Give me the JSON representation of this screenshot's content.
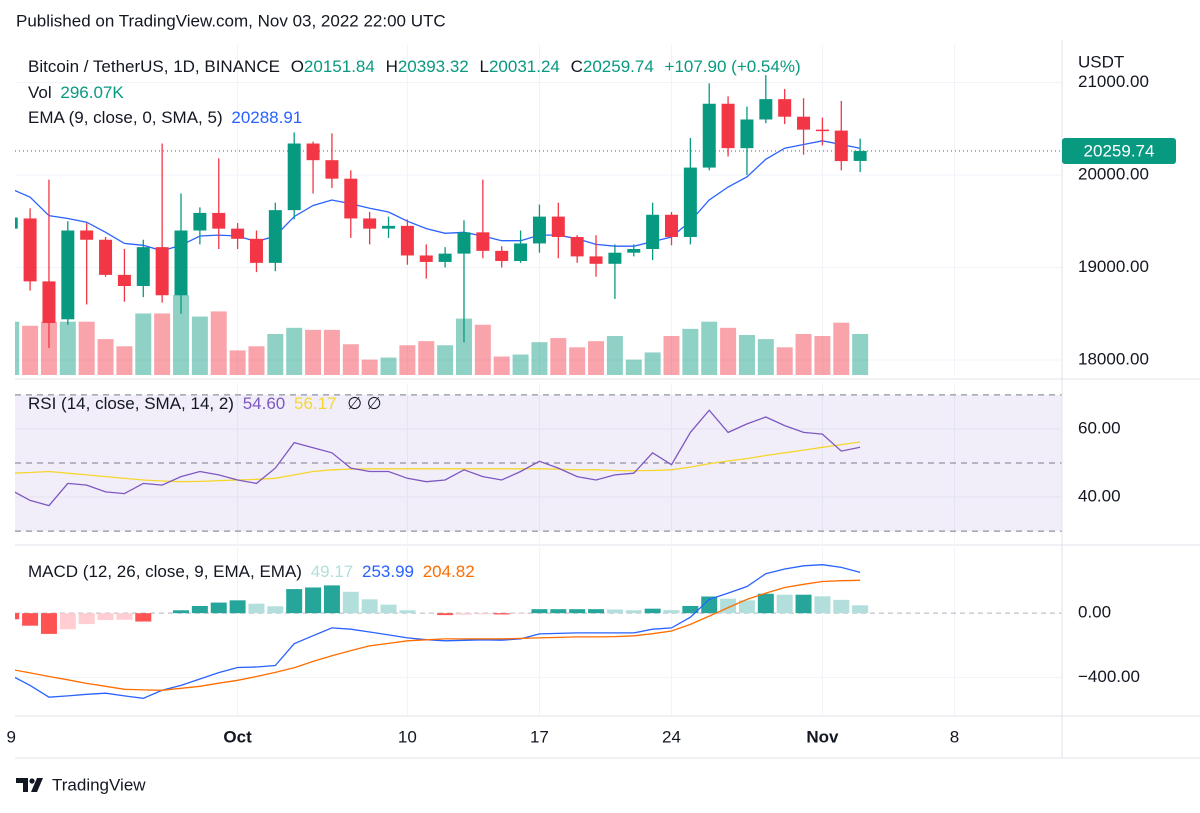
{
  "header": "Published on TradingView.com, Nov 03, 2022 22:00 UTC",
  "footer": "TradingView",
  "chart_data": [
    {
      "type": "candlestick",
      "title": "Bitcoin / TetherUS, 1D, BINANCE",
      "ohlc_labels": [
        "O",
        "H",
        "L",
        "C"
      ],
      "change": "+107.90 (+0.54%)",
      "axis_label": "USDT",
      "up_color": "#089981",
      "down_color": "#f23645",
      "open": [
        19420,
        19530,
        18850,
        18440,
        19400,
        19300,
        18920,
        18800,
        19220,
        18700,
        19400,
        19590,
        19420,
        19310,
        19050,
        19620,
        20340,
        20160,
        19960,
        19530,
        19420,
        19450,
        19130,
        19060,
        19150,
        19380,
        19180,
        19070,
        19260,
        19550,
        19330,
        19120,
        19040,
        19160,
        19200,
        19570,
        19330,
        20080,
        20770,
        20290,
        20600,
        20820,
        20630,
        20490,
        20480,
        20151.84
      ],
      "high": [
        19700,
        19640,
        19950,
        19500,
        19480,
        19330,
        19200,
        19300,
        20340,
        19800,
        19650,
        20180,
        19480,
        19400,
        19700,
        20460,
        20360,
        20450,
        20050,
        19600,
        19550,
        19520,
        19250,
        19220,
        19510,
        19950,
        19230,
        19400,
        19680,
        19700,
        19350,
        19350,
        19250,
        19250,
        19700,
        19600,
        20400,
        20990,
        20850,
        20740,
        21080,
        20930,
        20830,
        20620,
        20800,
        20393.32
      ],
      "low": [
        19300,
        18750,
        18130,
        18380,
        18600,
        18900,
        18630,
        18680,
        18620,
        18500,
        19250,
        19200,
        19200,
        18950,
        18960,
        19520,
        19800,
        19860,
        19320,
        19250,
        19320,
        19030,
        18880,
        19000,
        18190,
        19100,
        19000,
        19050,
        19160,
        19100,
        19050,
        18900,
        18660,
        19120,
        19080,
        19240,
        19250,
        20050,
        20200,
        20000,
        20560,
        20550,
        20220,
        20320,
        20050,
        20031.24
      ],
      "close": [
        19540,
        18850,
        18400,
        19400,
        19300,
        18920,
        18800,
        19220,
        18700,
        19400,
        19590,
        19420,
        19310,
        19050,
        19620,
        20340,
        20160,
        19960,
        19530,
        19420,
        19450,
        19130,
        19060,
        19150,
        19380,
        19180,
        19070,
        19260,
        19550,
        19330,
        19120,
        19040,
        19160,
        19200,
        19570,
        19330,
        20080,
        20770,
        20290,
        20600,
        20820,
        20630,
        20490,
        20480,
        20150,
        20259.74
      ],
      "ylim": [
        17838,
        21405
      ],
      "yticks": [
        {
          "value": 18000,
          "label": "18000.00"
        },
        {
          "value": 19000,
          "label": "19000.00"
        },
        {
          "value": 20000,
          "label": "20000.00"
        },
        {
          "value": 21000,
          "label": "21000.00"
        }
      ],
      "xlim": [
        0.2,
        55.7
      ],
      "xticks": [
        {
          "value": 0,
          "label": "9"
        },
        {
          "value": 12,
          "label": "Oct"
        },
        {
          "value": 21,
          "label": "10"
        },
        {
          "value": 28,
          "label": "17"
        },
        {
          "value": 35,
          "label": "24"
        },
        {
          "value": 43,
          "label": "Nov"
        },
        {
          "value": 50,
          "label": "8"
        }
      ],
      "grid": true,
      "volume": {
        "name": "Vol",
        "up_color": "rgba(8,153,129,0.45)",
        "down_color": "rgba(242,54,69,0.45)",
        "values": [
          384800,
          355200,
          384800,
          384800,
          384800,
          259000,
          207200,
          444000,
          444000,
          577200,
          421800,
          458800,
          177600,
          207200,
          296000,
          340400,
          325600,
          325600,
          222000,
          111000,
          125800,
          214600,
          244200,
          214600,
          407000,
          362600,
          133200,
          148000,
          236800,
          266400,
          199800,
          244200,
          281200,
          111000,
          162800,
          281200,
          333000,
          384800,
          340400,
          288600,
          259000,
          199800,
          296000,
          281200,
          377400,
          296070
        ],
        "value_labels": [
          null,
          null,
          null,
          null,
          null,
          null,
          null,
          null,
          null,
          null,
          null,
          null,
          null,
          null,
          null,
          null,
          null,
          null,
          null,
          null,
          null,
          null,
          null,
          null,
          null,
          null,
          null,
          null,
          null,
          null,
          null,
          null,
          null,
          null,
          null,
          null,
          null,
          null,
          null,
          null,
          null,
          null,
          null,
          null,
          null,
          "296.07K"
        ]
      },
      "ema": {
        "name": "EMA (9, close, 0, SMA, 5)",
        "color": "#2962ff",
        "values": [
          19850,
          19760,
          19560,
          19530,
          19490,
          19380,
          19260,
          19240,
          19180,
          19240,
          19340,
          19350,
          19340,
          19280,
          19340,
          19550,
          19670,
          19730,
          19690,
          19640,
          19600,
          19500,
          19420,
          19370,
          19380,
          19340,
          19290,
          19290,
          19350,
          19350,
          19310,
          19250,
          19230,
          19230,
          19280,
          19330,
          19500,
          19730,
          19870,
          19980,
          20170,
          20290,
          20330,
          20370,
          20330,
          20288.91
        ]
      }
    },
    {
      "type": "rsi",
      "ylim": [
        26.5,
        73.5
      ],
      "yticks": [
        {
          "value": 40,
          "label": "40.00"
        },
        {
          "value": 60,
          "label": "60.00"
        }
      ],
      "bands": [
        30,
        50,
        70
      ],
      "band_color": "rgba(126,87,194,0.1)",
      "extra_label": "∅  ∅",
      "series": [
        {
          "name": "RSI (14, close, SMA, 14, 2)",
          "color": "#7e57c2",
          "values": [
            42,
            39,
            37.5,
            44,
            43.5,
            41.5,
            41,
            44,
            43.5,
            46,
            47.5,
            46.5,
            45,
            44,
            48.5,
            56,
            54.5,
            53,
            48.5,
            47.5,
            47.5,
            45.5,
            44.5,
            45,
            48,
            46,
            45,
            47.5,
            50.5,
            48.5,
            46,
            45,
            46.5,
            47,
            53,
            49.5,
            59,
            65.5,
            59,
            61.5,
            63.5,
            61,
            59,
            58.5,
            53.5,
            54.6
          ],
          "value_labels": [
            null,
            null,
            null,
            null,
            null,
            null,
            null,
            null,
            null,
            null,
            null,
            null,
            null,
            null,
            null,
            null,
            null,
            null,
            null,
            null,
            null,
            null,
            null,
            null,
            null,
            null,
            null,
            null,
            null,
            null,
            null,
            null,
            null,
            null,
            null,
            null,
            null,
            null,
            null,
            null,
            null,
            null,
            null,
            null,
            null,
            "54.60"
          ]
        },
        {
          "color": "#f5d631",
          "values": [
            47,
            47.2,
            47.5,
            47,
            46.5,
            46,
            45.5,
            45,
            44.7,
            44.5,
            44.6,
            44.8,
            45,
            45.2,
            45.5,
            46.5,
            47.5,
            48,
            48.2,
            48.3,
            48.3,
            48.3,
            48.3,
            48.3,
            48.3,
            48.3,
            48.3,
            48.3,
            48.3,
            48.2,
            48,
            48,
            47.8,
            47.7,
            47.8,
            48,
            48.8,
            49.8,
            50.6,
            51.3,
            52.2,
            53,
            53.8,
            54.6,
            55.4,
            56.17
          ]
        }
      ]
    },
    {
      "type": "macd",
      "name": "MACD (12, 26, close, 9, EMA, EMA)",
      "ylim": [
        -634,
        412
      ],
      "yticks": [
        {
          "value": -400,
          "label": "−400.00"
        },
        {
          "value": 0,
          "label": "0.00"
        }
      ],
      "histogram": {
        "colors": [
          "#26a69a",
          "#b2dfdb",
          "#ff5252",
          "#ffcdd2"
        ],
        "values": [
          -38,
          -78,
          -129,
          -100,
          -68,
          -43,
          -41,
          -52,
          0,
          18,
          45,
          66,
          80,
          59,
          43,
          150,
          160,
          173,
          133,
          86,
          53,
          18,
          1,
          -12,
          -9,
          -6,
          -8,
          -3,
          25,
          25,
          25,
          25,
          23,
          18,
          28,
          19,
          45,
          104,
          90,
          80,
          121,
          115,
          115,
          105,
          83,
          49.17
        ]
      },
      "series": [
        {
          "color": "#2962ff",
          "values": [
            -388,
            -450,
            -523,
            -515,
            -505,
            -498,
            -515,
            -530,
            -480,
            -450,
            -410,
            -370,
            -338,
            -335,
            -326,
            -190,
            -140,
            -92,
            -100,
            -117,
            -135,
            -154,
            -165,
            -172,
            -169,
            -166,
            -168,
            -160,
            -129,
            -126,
            -123,
            -123,
            -123,
            -123,
            -100,
            -92,
            -25,
            86,
            125,
            166,
            246,
            275,
            295,
            302,
            285,
            253.99
          ]
        },
        {
          "color": "#ff6d00",
          "values": [
            -350,
            -372,
            -394,
            -415,
            -437,
            -455,
            -474,
            -478,
            -480,
            -468,
            -455,
            -436,
            -418,
            -394,
            -369,
            -340,
            -300,
            -265,
            -233,
            -203,
            -188,
            -172,
            -166,
            -160,
            -160,
            -160,
            -160,
            -157,
            -154,
            -151,
            -148,
            -148,
            -146,
            -141,
            -128,
            -111,
            -70,
            -18,
            35,
            86,
            125,
            160,
            180,
            197,
            202,
            204.82
          ]
        }
      ]
    }
  ]
}
